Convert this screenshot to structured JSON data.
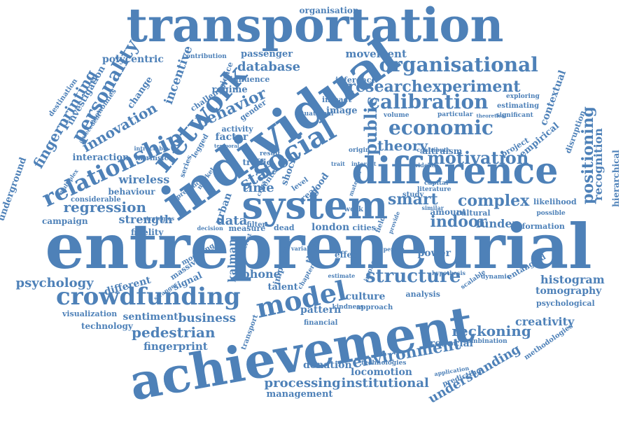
{
  "theme": {
    "word_color": "#4e81b8",
    "background": "#ffffff"
  },
  "words": [
    "transportation",
    "entrepreneurial",
    "achievement",
    "individual",
    "difference",
    "system",
    "network",
    "social",
    "crowdfunding",
    "model",
    "structure",
    "relationship",
    "economic",
    "organisational",
    "calibration",
    "researchexperiment",
    "motivation",
    "theory",
    "personality",
    "innovation",
    "behavior",
    "fingerprinting",
    "positioning",
    "recognition",
    "hierarchical",
    "histogram",
    "tomography",
    "psychological",
    "environment",
    "processing",
    "institutional",
    "understanding",
    "reckoning",
    "creativity",
    "locomotion",
    "prosocial",
    "donation",
    "management",
    "pedestrian",
    "fingerprint",
    "business",
    "sentiment",
    "technology",
    "visualization",
    "psychology",
    "different",
    "signal",
    "massive",
    "phone",
    "talent",
    "culture",
    "pattern",
    "analysis",
    "approach",
    "kindness",
    "indoor",
    "funder",
    "information",
    "smart",
    "complex",
    "regression",
    "strength",
    "campaign",
    "fidelity",
    "wireless",
    "behaviour",
    "database",
    "regime",
    "influence",
    "science",
    "incentive",
    "polycentric",
    "contribution",
    "passenger",
    "movement",
    "organisation",
    "altruism",
    "contextual",
    "empirical",
    "disruption",
    "project",
    "significant",
    "estimating",
    "exploring",
    "particular",
    "theoretical",
    "volume",
    "public",
    "station",
    "time",
    "data",
    "urban",
    "dead",
    "london",
    "cities",
    "power",
    "effect",
    "thesis",
    "important",
    "kalman",
    "entangled",
    "likelihood",
    "possible",
    "amount",
    "cultural",
    "capital",
    "evidence",
    "literature",
    "study",
    "person",
    "similar",
    "impact",
    "inference",
    "image",
    "gender",
    "activity",
    "factor",
    "challenge",
    "economies",
    "change",
    "antecedent",
    "destination",
    "investigation",
    "interaction",
    "underground",
    "intractable",
    "intrinsic",
    "considerable",
    "multiplex",
    "series",
    "market",
    "presence",
    "strategies",
    "decision",
    "measure",
    "filter",
    "modeling",
    "stranger",
    "estimate",
    "chapter",
    "financial",
    "transport",
    "dynamic",
    "scalable",
    "hypothesis",
    "combination",
    "methodologies",
    "predicting",
    "application",
    "technologies",
    "trait",
    "interact",
    "result",
    "traffic",
    "center",
    "shock",
    "good",
    "real",
    "level",
    "origin",
    "contribute",
    "situational",
    "temporal",
    "legged",
    "implication",
    "interest",
    "variable",
    "material",
    "provide",
    "field",
    "cross",
    "work"
  ]
}
